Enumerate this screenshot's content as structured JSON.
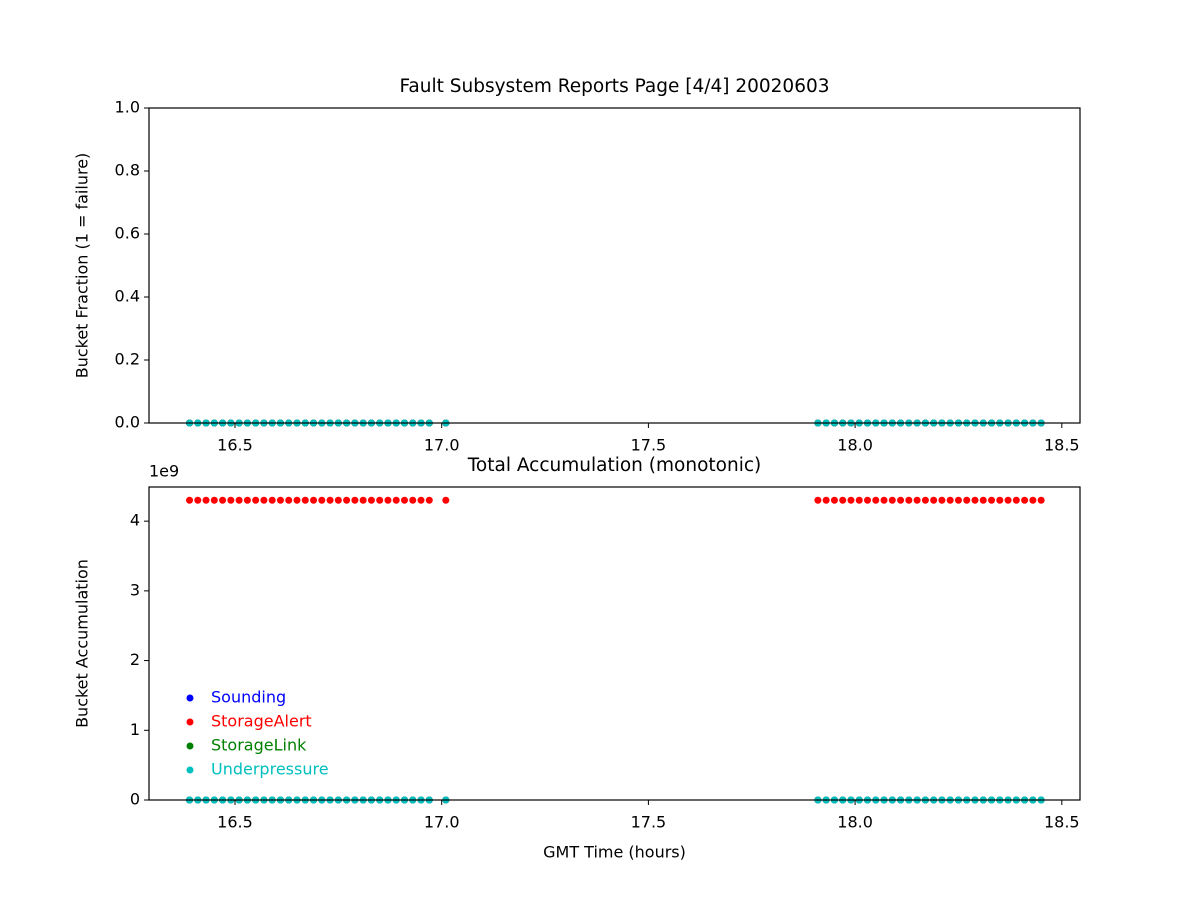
{
  "chart_data": [
    {
      "type": "scatter",
      "title": "Fault Subsystem Reports Page [4/4] 20020603",
      "y_label": "Bucket Fraction (1 = failure)",
      "x": [
        16.39,
        16.41,
        16.43,
        16.45,
        16.47,
        16.49,
        16.51,
        16.53,
        16.55,
        16.57,
        16.59,
        16.61,
        16.63,
        16.65,
        16.67,
        16.69,
        16.71,
        16.73,
        16.75,
        16.77,
        16.79,
        16.81,
        16.83,
        16.85,
        16.87,
        16.89,
        16.91,
        16.93,
        16.95,
        16.97,
        17.01,
        17.91,
        17.93,
        17.95,
        17.97,
        17.99,
        18.01,
        18.03,
        18.05,
        18.07,
        18.09,
        18.11,
        18.13,
        18.15,
        18.17,
        18.19,
        18.21,
        18.23,
        18.25,
        18.27,
        18.29,
        18.31,
        18.33,
        18.35,
        18.37,
        18.39,
        18.41,
        18.43,
        18.45
      ],
      "series": [
        {
          "name": "Sounding",
          "color": "#0000ff",
          "values": [
            0,
            0,
            0,
            0,
            0,
            0,
            0,
            0,
            0,
            0,
            0,
            0,
            0,
            0,
            0,
            0,
            0,
            0,
            0,
            0,
            0,
            0,
            0,
            0,
            0,
            0,
            0,
            0,
            0,
            0,
            0,
            0,
            0,
            0,
            0,
            0,
            0,
            0,
            0,
            0,
            0,
            0,
            0,
            0,
            0,
            0,
            0,
            0,
            0,
            0,
            0,
            0,
            0,
            0,
            0,
            0,
            0,
            0,
            0
          ]
        },
        {
          "name": "StorageAlert",
          "color": "#ff0000",
          "values": [
            0,
            0,
            0,
            0,
            0,
            0,
            0,
            0,
            0,
            0,
            0,
            0,
            0,
            0,
            0,
            0,
            0,
            0,
            0,
            0,
            0,
            0,
            0,
            0,
            0,
            0,
            0,
            0,
            0,
            0,
            0,
            0,
            0,
            0,
            0,
            0,
            0,
            0,
            0,
            0,
            0,
            0,
            0,
            0,
            0,
            0,
            0,
            0,
            0,
            0,
            0,
            0,
            0,
            0,
            0,
            0,
            0,
            0,
            0
          ]
        },
        {
          "name": "StorageLink",
          "color": "#008000",
          "values": [
            0,
            0,
            0,
            0,
            0,
            0,
            0,
            0,
            0,
            0,
            0,
            0,
            0,
            0,
            0,
            0,
            0,
            0,
            0,
            0,
            0,
            0,
            0,
            0,
            0,
            0,
            0,
            0,
            0,
            0,
            0,
            0,
            0,
            0,
            0,
            0,
            0,
            0,
            0,
            0,
            0,
            0,
            0,
            0,
            0,
            0,
            0,
            0,
            0,
            0,
            0,
            0,
            0,
            0,
            0,
            0,
            0,
            0,
            0
          ]
        },
        {
          "name": "Underpressure",
          "color": "#00bfbf",
          "values": [
            0,
            0,
            0,
            0,
            0,
            0,
            0,
            0,
            0,
            0,
            0,
            0,
            0,
            0,
            0,
            0,
            0,
            0,
            0,
            0,
            0,
            0,
            0,
            0,
            0,
            0,
            0,
            0,
            0,
            0,
            0,
            0,
            0,
            0,
            0,
            0,
            0,
            0,
            0,
            0,
            0,
            0,
            0,
            0,
            0,
            0,
            0,
            0,
            0,
            0,
            0,
            0,
            0,
            0,
            0,
            0,
            0,
            0,
            0
          ]
        }
      ],
      "xlim": [
        16.292,
        18.544
      ],
      "xticks": [
        16.5,
        {
          "value": 17,
          "label": "17.0"
        },
        17.5,
        {
          "value": 18,
          "label": "18.0"
        },
        18.5
      ],
      "ylim": [
        0,
        1
      ],
      "yticks": [
        {
          "value": 0,
          "label": "0.0"
        },
        0.2,
        0.4,
        0.6,
        0.8,
        {
          "value": 1,
          "label": "1.0"
        }
      ]
    },
    {
      "type": "scatter",
      "title": "Total Accumulation (monotonic)",
      "y_label": "Bucket Accumulation",
      "x_label": "GMT Time (hours)",
      "y_offset_label": "1e9",
      "x": [
        16.39,
        16.41,
        16.43,
        16.45,
        16.47,
        16.49,
        16.51,
        16.53,
        16.55,
        16.57,
        16.59,
        16.61,
        16.63,
        16.65,
        16.67,
        16.69,
        16.71,
        16.73,
        16.75,
        16.77,
        16.79,
        16.81,
        16.83,
        16.85,
        16.87,
        16.89,
        16.91,
        16.93,
        16.95,
        16.97,
        17.01,
        17.91,
        17.93,
        17.95,
        17.97,
        17.99,
        18.01,
        18.03,
        18.05,
        18.07,
        18.09,
        18.11,
        18.13,
        18.15,
        18.17,
        18.19,
        18.21,
        18.23,
        18.25,
        18.27,
        18.29,
        18.31,
        18.33,
        18.35,
        18.37,
        18.39,
        18.41,
        18.43,
        18.45
      ],
      "series": [
        {
          "name": "Sounding",
          "color": "#0000ff",
          "values": [
            0,
            0,
            0,
            0,
            0,
            0,
            0,
            0,
            0,
            0,
            0,
            0,
            0,
            0,
            0,
            0,
            0,
            0,
            0,
            0,
            0,
            0,
            0,
            0,
            0,
            0,
            0,
            0,
            0,
            0,
            0,
            0,
            0,
            0,
            0,
            0,
            0,
            0,
            0,
            0,
            0,
            0,
            0,
            0,
            0,
            0,
            0,
            0,
            0,
            0,
            0,
            0,
            0,
            0,
            0,
            0,
            0,
            0,
            0
          ]
        },
        {
          "name": "StorageAlert",
          "color": "#ff0000",
          "values": [
            4300000000,
            4300000000,
            4300000000,
            4300000000,
            4300000000,
            4300000000,
            4300000000,
            4300000000,
            4300000000,
            4300000000,
            4300000000,
            4300000000,
            4300000000,
            4300000000,
            4300000000,
            4300000000,
            4300000000,
            4300000000,
            4300000000,
            4300000000,
            4300000000,
            4300000000,
            4300000000,
            4300000000,
            4300000000,
            4300000000,
            4300000000,
            4300000000,
            4300000000,
            4300000000,
            4300000000,
            4300000000,
            4300000000,
            4300000000,
            4300000000,
            4300000000,
            4300000000,
            4300000000,
            4300000000,
            4300000000,
            4300000000,
            4300000000,
            4300000000,
            4300000000,
            4300000000,
            4300000000,
            4300000000,
            4300000000,
            4300000000,
            4300000000,
            4300000000,
            4300000000,
            4300000000,
            4300000000,
            4300000000,
            4300000000,
            4300000000,
            4300000000,
            4300000000
          ]
        },
        {
          "name": "StorageLink",
          "color": "#008000",
          "values": [
            0,
            0,
            0,
            0,
            0,
            0,
            0,
            0,
            0,
            0,
            0,
            0,
            0,
            0,
            0,
            0,
            0,
            0,
            0,
            0,
            0,
            0,
            0,
            0,
            0,
            0,
            0,
            0,
            0,
            0,
            0,
            0,
            0,
            0,
            0,
            0,
            0,
            0,
            0,
            0,
            0,
            0,
            0,
            0,
            0,
            0,
            0,
            0,
            0,
            0,
            0,
            0,
            0,
            0,
            0,
            0,
            0,
            0,
            0
          ]
        },
        {
          "name": "Underpressure",
          "color": "#00bfbf",
          "values": [
            0,
            0,
            0,
            0,
            0,
            0,
            0,
            0,
            0,
            0,
            0,
            0,
            0,
            0,
            0,
            0,
            0,
            0,
            0,
            0,
            0,
            0,
            0,
            0,
            0,
            0,
            0,
            0,
            0,
            0,
            0,
            0,
            0,
            0,
            0,
            0,
            0,
            0,
            0,
            0,
            0,
            0,
            0,
            0,
            0,
            0,
            0,
            0,
            0,
            0,
            0,
            0,
            0,
            0,
            0,
            0,
            0,
            0,
            0
          ]
        }
      ],
      "xlim": [
        16.292,
        18.544
      ],
      "xticks": [
        16.5,
        {
          "value": 17,
          "label": "17.0"
        },
        17.5,
        {
          "value": 18,
          "label": "18.0"
        },
        18.5
      ],
      "ylim": [
        0,
        4490000000
      ],
      "yticks": [
        {
          "value": 0,
          "label": "0"
        },
        {
          "value": 1000000000,
          "label": "1"
        },
        {
          "value": 2000000000,
          "label": "2"
        },
        {
          "value": 3000000000,
          "label": "3"
        },
        {
          "value": 4000000000,
          "label": "4"
        }
      ],
      "legend": "lower left"
    }
  ]
}
